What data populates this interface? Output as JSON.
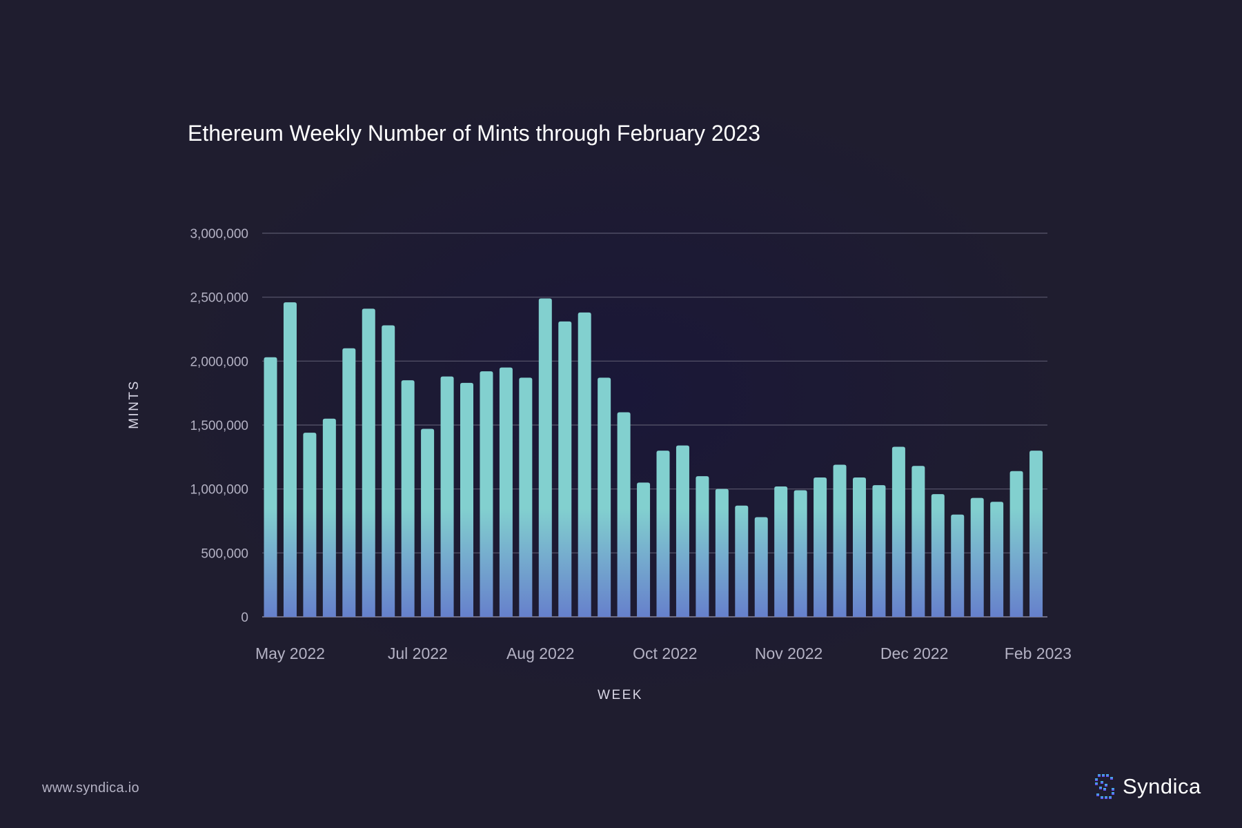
{
  "chart_data": {
    "type": "bar",
    "title": "Ethereum Weekly Number of Mints through February 2023",
    "xlabel": "WEEK",
    "ylabel": "MINTS",
    "ylim": [
      0,
      3000000
    ],
    "yticks": [
      0,
      500000,
      1000000,
      1500000,
      2000000,
      2500000,
      3000000
    ],
    "ytick_labels": [
      "0",
      "500,000",
      "1,000,000",
      "1,500,000",
      "2,000,000",
      "2,500,000",
      "3,000,000"
    ],
    "xtick_labels": [
      "May 2022",
      "Jul 2022",
      "Aug 2022",
      "Oct 2022",
      "Nov 2022",
      "Dec 2022",
      "Feb 2023"
    ],
    "xtick_bar_index": [
      1,
      7.5,
      13.75,
      20.1,
      26.4,
      32.8,
      39.1
    ],
    "grid": true,
    "colors": {
      "bar_top": "#82d0cf",
      "bar_bottom": "#6680cc"
    },
    "values": [
      2030000,
      2460000,
      1440000,
      1550000,
      2100000,
      2410000,
      2280000,
      1850000,
      1470000,
      1880000,
      1830000,
      1920000,
      1950000,
      1870000,
      2490000,
      2310000,
      2380000,
      1870000,
      1600000,
      1050000,
      1300000,
      1340000,
      1100000,
      1000000,
      870000,
      780000,
      1020000,
      990000,
      1090000,
      1190000,
      1090000,
      1030000,
      1330000,
      1180000,
      960000,
      800000,
      930000,
      900000,
      1140000,
      1300000
    ]
  },
  "footer": {
    "url": "www.syndica.io",
    "brand": "Syndica",
    "logo_icon": "syndica-logo-icon"
  }
}
